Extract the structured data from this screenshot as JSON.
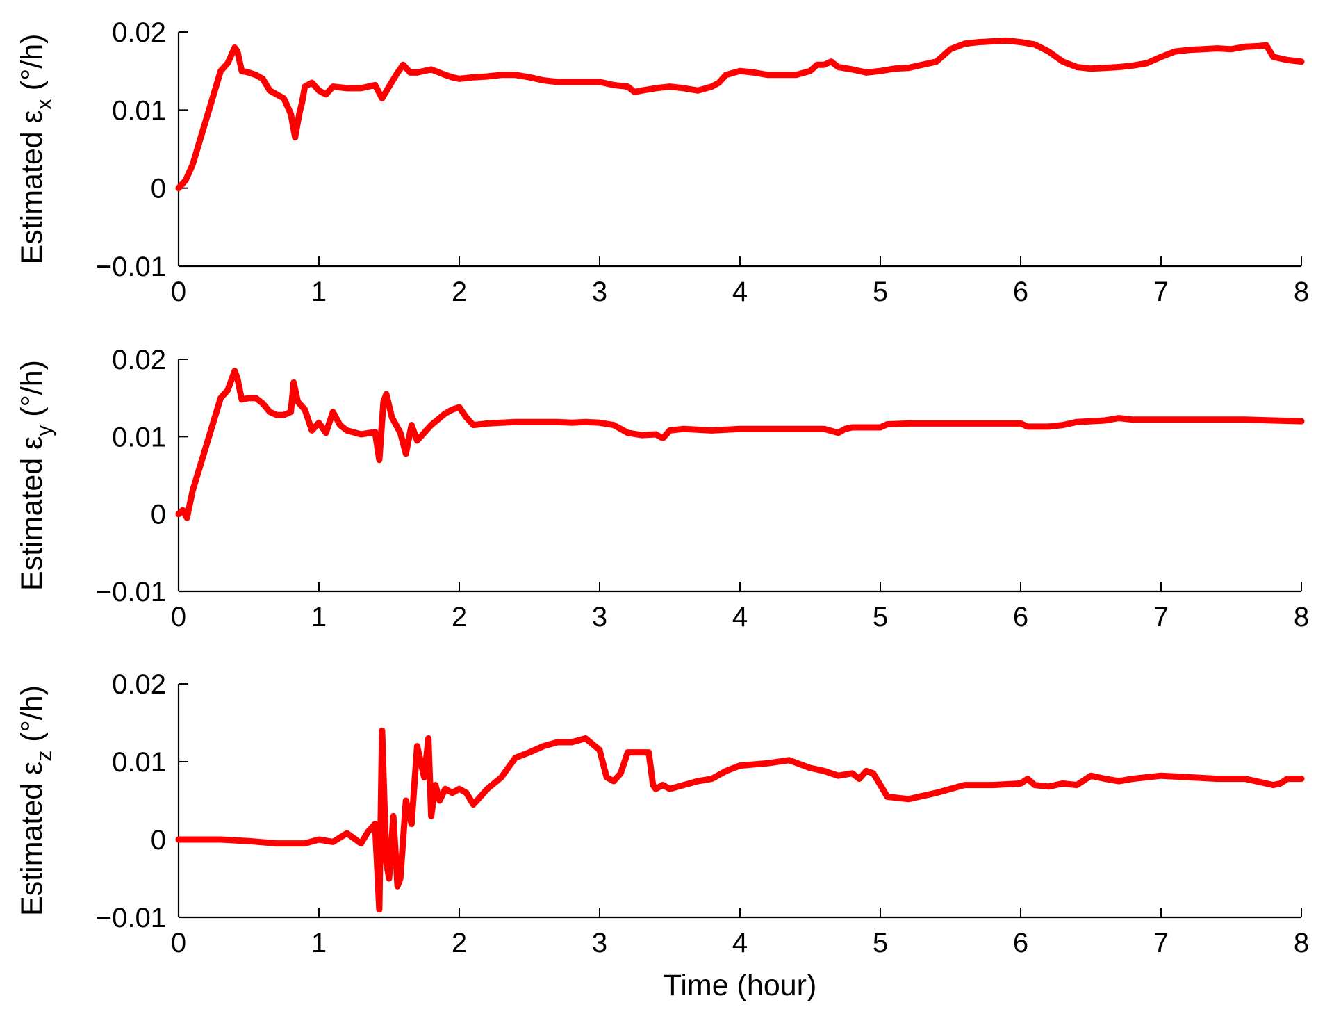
{
  "chart_data": [
    {
      "type": "line",
      "ylabel_main": "Estimated ε",
      "ylabel_sub": "x",
      "ylabel_unit": "(°/h)",
      "xlabel": "",
      "xlim": [
        0,
        8
      ],
      "ylim": [
        -0.01,
        0.02
      ],
      "xticks": [
        "0",
        "1",
        "2",
        "3",
        "4",
        "5",
        "6",
        "7",
        "8"
      ],
      "yticks": [
        "0.02",
        "0.01",
        "0",
        "−0.01"
      ],
      "line_color": "#ff0000",
      "grid": false,
      "x": [
        0,
        0.05,
        0.1,
        0.15,
        0.2,
        0.25,
        0.3,
        0.35,
        0.4,
        0.42,
        0.45,
        0.5,
        0.55,
        0.6,
        0.65,
        0.7,
        0.75,
        0.8,
        0.83,
        0.86,
        0.88,
        0.9,
        0.95,
        1.0,
        1.05,
        1.1,
        1.2,
        1.3,
        1.4,
        1.45,
        1.5,
        1.55,
        1.6,
        1.65,
        1.7,
        1.8,
        1.9,
        1.95,
        2.0,
        2.1,
        2.2,
        2.3,
        2.4,
        2.5,
        2.6,
        2.7,
        2.8,
        2.9,
        3.0,
        3.1,
        3.2,
        3.25,
        3.3,
        3.4,
        3.5,
        3.6,
        3.7,
        3.8,
        3.85,
        3.9,
        4.0,
        4.1,
        4.2,
        4.3,
        4.4,
        4.5,
        4.55,
        4.6,
        4.65,
        4.7,
        4.8,
        4.9,
        5.0,
        5.1,
        5.2,
        5.3,
        5.4,
        5.5,
        5.6,
        5.7,
        5.8,
        5.9,
        6.0,
        6.1,
        6.2,
        6.3,
        6.4,
        6.5,
        6.6,
        6.7,
        6.8,
        6.9,
        7.0,
        7.1,
        7.2,
        7.3,
        7.4,
        7.5,
        7.6,
        7.7,
        7.75,
        7.8,
        7.9,
        8.0
      ],
      "y": [
        0,
        0.001,
        0.003,
        0.006,
        0.009,
        0.012,
        0.015,
        0.016,
        0.018,
        0.0175,
        0.015,
        0.0148,
        0.0145,
        0.014,
        0.0125,
        0.012,
        0.0115,
        0.0095,
        0.0065,
        0.0095,
        0.011,
        0.013,
        0.0135,
        0.0125,
        0.012,
        0.013,
        0.0128,
        0.0128,
        0.0132,
        0.0115,
        0.013,
        0.0145,
        0.0158,
        0.0148,
        0.0148,
        0.0152,
        0.0145,
        0.0142,
        0.014,
        0.0142,
        0.0143,
        0.0145,
        0.0145,
        0.0142,
        0.0138,
        0.0136,
        0.0136,
        0.0136,
        0.0136,
        0.0132,
        0.013,
        0.0123,
        0.0125,
        0.0128,
        0.013,
        0.0128,
        0.0125,
        0.013,
        0.0135,
        0.0145,
        0.015,
        0.0148,
        0.0145,
        0.0145,
        0.0145,
        0.015,
        0.0158,
        0.0158,
        0.0162,
        0.0155,
        0.0152,
        0.0148,
        0.015,
        0.0153,
        0.0154,
        0.0158,
        0.0162,
        0.0178,
        0.0185,
        0.0187,
        0.0188,
        0.0189,
        0.0187,
        0.0184,
        0.0175,
        0.0162,
        0.0155,
        0.0153,
        0.0154,
        0.0155,
        0.0157,
        0.016,
        0.0168,
        0.0175,
        0.0177,
        0.0178,
        0.0179,
        0.0178,
        0.0181,
        0.0182,
        0.0183,
        0.0168,
        0.0164,
        0.0162
      ]
    },
    {
      "type": "line",
      "ylabel_main": "Estimated ε",
      "ylabel_sub": "y",
      "ylabel_unit": "(°/h)",
      "xlabel": "",
      "xlim": [
        0,
        8
      ],
      "ylim": [
        -0.01,
        0.02
      ],
      "xticks": [
        "0",
        "1",
        "2",
        "3",
        "4",
        "5",
        "6",
        "7",
        "8"
      ],
      "yticks": [
        "0.02",
        "0.01",
        "0",
        "−0.01"
      ],
      "line_color": "#ff0000",
      "grid": false,
      "x": [
        0,
        0.03,
        0.06,
        0.1,
        0.15,
        0.2,
        0.25,
        0.3,
        0.35,
        0.4,
        0.42,
        0.45,
        0.5,
        0.55,
        0.6,
        0.65,
        0.7,
        0.75,
        0.8,
        0.82,
        0.85,
        0.9,
        0.95,
        1.0,
        1.05,
        1.1,
        1.15,
        1.2,
        1.3,
        1.4,
        1.43,
        1.46,
        1.48,
        1.52,
        1.55,
        1.58,
        1.62,
        1.66,
        1.7,
        1.75,
        1.8,
        1.9,
        1.95,
        2.0,
        2.05,
        2.1,
        2.2,
        2.3,
        2.4,
        2.5,
        2.6,
        2.7,
        2.8,
        2.9,
        3.0,
        3.1,
        3.2,
        3.3,
        3.4,
        3.45,
        3.5,
        3.6,
        3.8,
        4.0,
        4.2,
        4.4,
        4.6,
        4.7,
        4.75,
        4.8,
        5.0,
        5.05,
        5.2,
        5.4,
        5.6,
        5.8,
        6.0,
        6.05,
        6.1,
        6.2,
        6.3,
        6.4,
        6.5,
        6.6,
        6.7,
        6.8,
        7.0,
        7.2,
        7.4,
        7.6,
        7.8,
        8.0
      ],
      "y": [
        0,
        0.0005,
        -0.0005,
        0.003,
        0.006,
        0.009,
        0.012,
        0.015,
        0.016,
        0.0185,
        0.0175,
        0.0148,
        0.015,
        0.015,
        0.0143,
        0.0132,
        0.0128,
        0.0128,
        0.0132,
        0.017,
        0.0145,
        0.0135,
        0.0108,
        0.0118,
        0.0105,
        0.0132,
        0.0115,
        0.0108,
        0.0103,
        0.0106,
        0.007,
        0.0145,
        0.0155,
        0.0125,
        0.0115,
        0.0105,
        0.0078,
        0.0115,
        0.0095,
        0.0105,
        0.0115,
        0.013,
        0.0135,
        0.0138,
        0.0125,
        0.0115,
        0.0117,
        0.0118,
        0.0119,
        0.0119,
        0.0119,
        0.0119,
        0.0118,
        0.0119,
        0.0118,
        0.0115,
        0.0105,
        0.0102,
        0.0103,
        0.0098,
        0.0108,
        0.011,
        0.0108,
        0.011,
        0.011,
        0.011,
        0.011,
        0.0105,
        0.011,
        0.0112,
        0.0112,
        0.0116,
        0.0117,
        0.0117,
        0.0117,
        0.0117,
        0.0117,
        0.0113,
        0.0113,
        0.0113,
        0.0115,
        0.0119,
        0.012,
        0.0121,
        0.0124,
        0.0122,
        0.0122,
        0.0122,
        0.0122,
        0.0122,
        0.0121,
        0.012
      ]
    },
    {
      "type": "line",
      "ylabel_main": "Estimated ε",
      "ylabel_sub": "z",
      "ylabel_unit": "(°/h)",
      "xlabel": "Time (hour)",
      "xlim": [
        0,
        8
      ],
      "ylim": [
        -0.01,
        0.02
      ],
      "xticks": [
        "0",
        "1",
        "2",
        "3",
        "4",
        "5",
        "6",
        "7",
        "8"
      ],
      "yticks": [
        "0.02",
        "0.01",
        "0",
        "−0.01"
      ],
      "line_color": "#ff0000",
      "grid": false,
      "x": [
        0,
        0.3,
        0.5,
        0.7,
        0.9,
        1.0,
        1.1,
        1.2,
        1.3,
        1.35,
        1.4,
        1.43,
        1.45,
        1.48,
        1.5,
        1.53,
        1.56,
        1.58,
        1.62,
        1.66,
        1.7,
        1.75,
        1.78,
        1.8,
        1.83,
        1.86,
        1.9,
        1.95,
        2.0,
        2.05,
        2.1,
        2.2,
        2.3,
        2.4,
        2.5,
        2.6,
        2.7,
        2.8,
        2.9,
        3.0,
        3.05,
        3.1,
        3.15,
        3.2,
        3.25,
        3.3,
        3.35,
        3.38,
        3.4,
        3.45,
        3.5,
        3.6,
        3.7,
        3.8,
        3.9,
        4.0,
        4.2,
        4.35,
        4.5,
        4.6,
        4.7,
        4.8,
        4.85,
        4.9,
        4.95,
        5.0,
        5.05,
        5.2,
        5.4,
        5.6,
        5.8,
        6.0,
        6.05,
        6.1,
        6.2,
        6.3,
        6.4,
        6.5,
        6.6,
        6.7,
        6.8,
        7.0,
        7.2,
        7.4,
        7.6,
        7.8,
        7.85,
        7.9,
        8.0
      ],
      "y": [
        0,
        0,
        -0.0002,
        -0.0005,
        -0.0005,
        0,
        -0.0003,
        0.0008,
        -0.0005,
        0.001,
        0.002,
        -0.009,
        0.014,
        -0.003,
        -0.005,
        0.003,
        -0.006,
        -0.005,
        0.005,
        0.002,
        0.012,
        0.008,
        0.013,
        0.003,
        0.007,
        0.005,
        0.0065,
        0.006,
        0.0065,
        0.006,
        0.0045,
        0.0065,
        0.008,
        0.0105,
        0.0112,
        0.012,
        0.0125,
        0.0125,
        0.013,
        0.0115,
        0.008,
        0.0075,
        0.0085,
        0.0112,
        0.0112,
        0.0112,
        0.0112,
        0.007,
        0.0065,
        0.007,
        0.0065,
        0.007,
        0.0075,
        0.0078,
        0.0088,
        0.0095,
        0.0098,
        0.0102,
        0.0092,
        0.0088,
        0.0082,
        0.0085,
        0.0078,
        0.0088,
        0.0085,
        0.007,
        0.0055,
        0.0052,
        0.006,
        0.007,
        0.007,
        0.0072,
        0.0078,
        0.007,
        0.0068,
        0.0072,
        0.007,
        0.0082,
        0.0078,
        0.0075,
        0.0078,
        0.0082,
        0.008,
        0.0078,
        0.0078,
        0.007,
        0.0072,
        0.0078,
        0.0078
      ]
    }
  ]
}
